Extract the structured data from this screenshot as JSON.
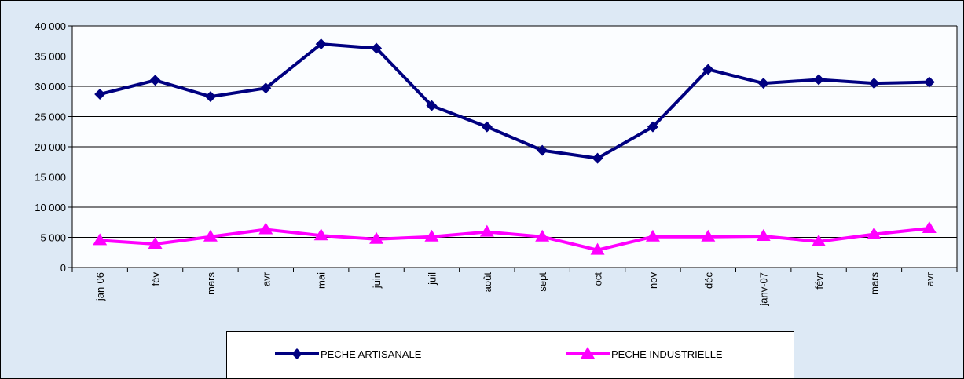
{
  "chart_data": {
    "type": "line",
    "categories": [
      "jan-06",
      "fév",
      "mars",
      "avr",
      "mai",
      "juin",
      "juil",
      "août",
      "sept",
      "oct",
      "nov",
      "déc",
      "janv-07",
      "févr",
      "mars",
      "avr"
    ],
    "series": [
      {
        "name": "PECHE ARTISANALE",
        "color": "#000080",
        "marker": "diamond",
        "values": [
          28700,
          31000,
          28300,
          29700,
          37000,
          36300,
          26800,
          23300,
          19400,
          18100,
          23300,
          32800,
          30500,
          31100,
          30500,
          30700
        ]
      },
      {
        "name": "PECHE INDUSTRIELLE",
        "color": "#ff00ff",
        "marker": "triangle",
        "values": [
          4500,
          3900,
          5100,
          6300,
          5300,
          4700,
          5100,
          5900,
          5100,
          2900,
          5100,
          5100,
          5200,
          4300,
          5500,
          6500
        ]
      }
    ],
    "ylim": [
      0,
      40000
    ],
    "yticks": [
      0,
      {
        "value": 5000,
        "label": "5 000"
      },
      {
        "value": 10000,
        "label": "10 000"
      },
      {
        "value": 15000,
        "label": "15 000"
      },
      {
        "value": 20000,
        "label": "20 000"
      },
      {
        "value": 25000,
        "label": "25 000"
      },
      {
        "value": 30000,
        "label": "30 000"
      },
      {
        "value": 35000,
        "label": "35 000"
      },
      {
        "value": 40000,
        "label": "40 000"
      }
    ],
    "grid": true,
    "legend": "bottom"
  }
}
